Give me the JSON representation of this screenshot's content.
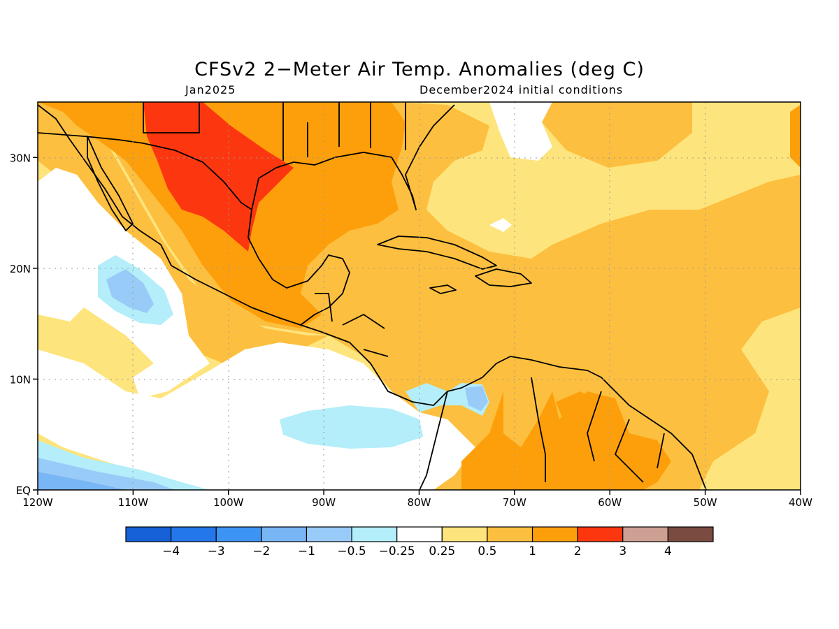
{
  "title": "CFSv2 2−Meter Air Temp. Anomalies (deg C)",
  "subtitle_left": "Jan2025",
  "subtitle_right": "December2024 initial conditions",
  "map": {
    "lon_range": [
      -120,
      -40
    ],
    "lat_range": [
      0,
      35
    ],
    "grid": "dotted",
    "lon_ticks": [
      {
        "v": -120,
        "label": "120W"
      },
      {
        "v": -110,
        "label": "110W"
      },
      {
        "v": -100,
        "label": "100W"
      },
      {
        "v": -90,
        "label": "90W"
      },
      {
        "v": -80,
        "label": "80W"
      },
      {
        "v": -70,
        "label": "70W"
      },
      {
        "v": -60,
        "label": "60W"
      },
      {
        "v": -50,
        "label": "50W"
      },
      {
        "v": -40,
        "label": "40W"
      }
    ],
    "lat_ticks": [
      {
        "v": 0,
        "label": "EQ"
      },
      {
        "v": 10,
        "label": "10N"
      },
      {
        "v": 20,
        "label": "20N"
      },
      {
        "v": 30,
        "label": "30N"
      }
    ]
  },
  "colorbar": {
    "colors": [
      "#1661d8",
      "#2476eb",
      "#3d94f5",
      "#79b6f6",
      "#99cbf8",
      "#b3eefa",
      "#ffffff",
      "#fee47c",
      "#fdbf3f",
      "#fd9f0b",
      "#fc3710",
      "#cda094",
      "#7a4b40"
    ],
    "labels": [
      "−4",
      "−3",
      "−2",
      "−1",
      "−0.5",
      "−0.25",
      "0.25",
      "0.5",
      "1",
      "2",
      "3",
      "4"
    ]
  }
}
